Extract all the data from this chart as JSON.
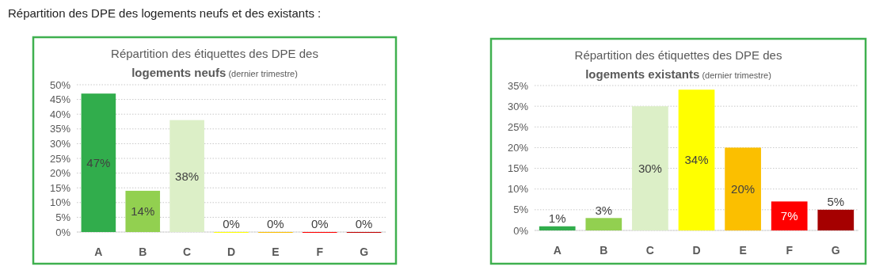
{
  "chart_data": [
    {
      "type": "bar",
      "title": "Répartition des étiquettes des DPE des logements neufs",
      "subtitle": "(dernier trimestre)",
      "annotations": [
        "Répartition des DPE des logements neufs et des existants :"
      ],
      "categories": [
        "A",
        "B",
        "C",
        "D",
        "E",
        "F",
        "G"
      ],
      "values": [
        47,
        14,
        38,
        0,
        0,
        0,
        0
      ],
      "colors": [
        "#31ad4c",
        "#92d050",
        "#dcefc7",
        "#ffff00",
        "#fbbf00",
        "#ff0000",
        "#c00000"
      ],
      "value_labels": [
        "47%",
        "14%",
        "38%",
        "0%",
        "0%",
        "0%",
        "0%"
      ],
      "ylim": [
        0,
        50
      ],
      "yticks": [
        {
          "value": 0,
          "label": "0%"
        },
        {
          "value": 5,
          "label": "5%"
        },
        {
          "value": 10,
          "label": "10%"
        },
        {
          "value": 15,
          "label": "15%"
        },
        {
          "value": 20,
          "label": "20%"
        },
        {
          "value": 25,
          "label": "25%"
        },
        {
          "value": 30,
          "label": "30%"
        },
        {
          "value": 35,
          "label": "35%"
        },
        {
          "value": 40,
          "label": "40%"
        },
        {
          "value": 45,
          "label": "45%"
        },
        {
          "value": 50,
          "label": "50%"
        }
      ],
      "grid": "y"
    },
    {
      "type": "bar",
      "title": "Répartition des étiquettes des DPE des logements existants",
      "subtitle": "(dernier trimestre)",
      "categories": [
        "A",
        "B",
        "C",
        "D",
        "E",
        "F",
        "G"
      ],
      "values": [
        1,
        3,
        30,
        34,
        20,
        7,
        5
      ],
      "colors": [
        "#31ad4c",
        "#92d050",
        "#dcefc7",
        "#ffff00",
        "#fbbf00",
        "#ff0000",
        "#a50000"
      ],
      "value_labels": [
        "1%",
        "3%",
        "30%",
        "34%",
        "20%",
        "7%",
        "5%"
      ],
      "ylim": [
        0,
        35
      ],
      "yticks": [
        {
          "value": 0,
          "label": "0%"
        },
        {
          "value": 5,
          "label": "5%"
        },
        {
          "value": 10,
          "label": "10%"
        },
        {
          "value": 15,
          "label": "15%"
        },
        {
          "value": 20,
          "label": "20%"
        },
        {
          "value": 25,
          "label": "25%"
        },
        {
          "value": 30,
          "label": "30%"
        },
        {
          "value": 35,
          "label": "35%"
        }
      ],
      "grid": "y"
    }
  ]
}
